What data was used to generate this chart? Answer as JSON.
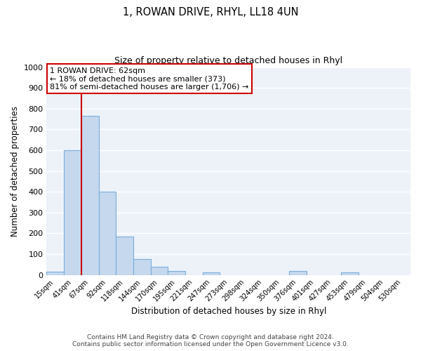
{
  "title": "1, ROWAN DRIVE, RHYL, LL18 4UN",
  "subtitle": "Size of property relative to detached houses in Rhyl",
  "xlabel": "Distribution of detached houses by size in Rhyl",
  "ylabel": "Number of detached properties",
  "bar_labels": [
    "15sqm",
    "41sqm",
    "67sqm",
    "92sqm",
    "118sqm",
    "144sqm",
    "170sqm",
    "195sqm",
    "221sqm",
    "247sqm",
    "273sqm",
    "298sqm",
    "324sqm",
    "350sqm",
    "376sqm",
    "401sqm",
    "427sqm",
    "453sqm",
    "479sqm",
    "504sqm",
    "530sqm"
  ],
  "bar_values": [
    15,
    600,
    765,
    400,
    185,
    75,
    38,
    20,
    0,
    12,
    0,
    0,
    0,
    0,
    20,
    0,
    0,
    12,
    0,
    0,
    0
  ],
  "bar_color": "#c5d8ee",
  "bar_edgecolor": "#7aadda",
  "background_color": "#edf2f9",
  "grid_color": "#ffffff",
  "vline_color": "#cc0000",
  "ylim": [
    0,
    1000
  ],
  "yticks": [
    0,
    100,
    200,
    300,
    400,
    500,
    600,
    700,
    800,
    900,
    1000
  ],
  "annotation_text": "1 ROWAN DRIVE: 62sqm\n← 18% of detached houses are smaller (373)\n81% of semi-detached houses are larger (1,706) →",
  "annotation_box_edgecolor": "#cc0000",
  "footer_line1": "Contains HM Land Registry data © Crown copyright and database right 2024.",
  "footer_line2": "Contains public sector information licensed under the Open Government Licence v3.0."
}
